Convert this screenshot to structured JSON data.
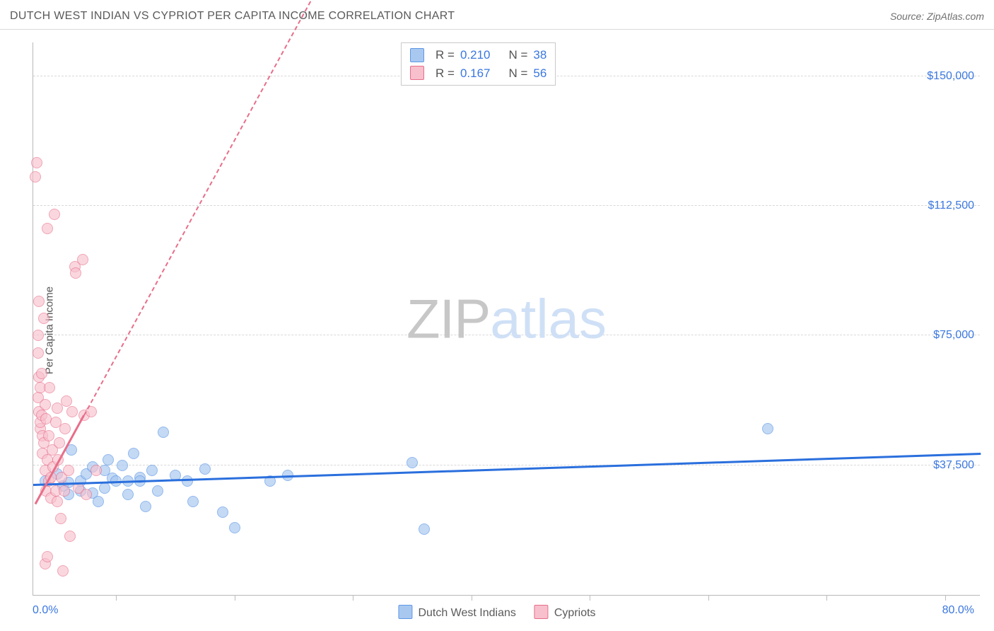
{
  "header": {
    "title": "DUTCH WEST INDIAN VS CYPRIOT PER CAPITA INCOME CORRELATION CHART",
    "source_prefix": "Source: ",
    "source_name": "ZipAtlas.com"
  },
  "watermark": {
    "part1": "ZIP",
    "part2": "atlas"
  },
  "axes": {
    "ylabel": "Per Capita Income",
    "xmin": 0,
    "xmax": 80,
    "xmin_label": "0.0%",
    "xmax_label": "80.0%",
    "ymin": 0,
    "ymax": 160000,
    "yticks": [
      {
        "v": 37500,
        "label": "$37,500"
      },
      {
        "v": 75000,
        "label": "$75,000"
      },
      {
        "v": 112500,
        "label": "$112,500"
      },
      {
        "v": 150000,
        "label": "$150,000"
      }
    ],
    "xticks_minor": [
      7,
      17,
      27,
      37,
      47,
      57,
      67,
      77
    ],
    "grid_color": "#d8d8d8",
    "axis_color": "#b8b8b8",
    "tick_label_color": "#3a77e0"
  },
  "stats_legend": {
    "rows": [
      {
        "swatch_key": "A",
        "r_label": "R =",
        "r_value": "0.210",
        "n_label": "N =",
        "n_value": "38"
      },
      {
        "swatch_key": "B",
        "r_label": "R =",
        "r_value": "0.167",
        "n_label": "N =",
        "n_value": "56"
      }
    ]
  },
  "series": {
    "A": {
      "name": "Dutch West Indians",
      "marker_fill": "#a9c8f0",
      "marker_stroke": "#5e98e6",
      "marker_opacity": 0.68,
      "marker_radius_px": 8,
      "trend_color": "#2a6fdd",
      "trend": {
        "x1": 0,
        "y1": 31500,
        "x2": 80,
        "y2": 40500,
        "solid_until_x": 80,
        "dashed_after": false
      },
      "points": [
        [
          1,
          33000
        ],
        [
          2,
          35000
        ],
        [
          2.5,
          31500
        ],
        [
          3,
          32500
        ],
        [
          3,
          29000
        ],
        [
          3.2,
          42000
        ],
        [
          4,
          30000
        ],
        [
          4,
          33000
        ],
        [
          4.5,
          35000
        ],
        [
          5,
          29500
        ],
        [
          5,
          37000
        ],
        [
          5.5,
          27000
        ],
        [
          6,
          31000
        ],
        [
          6,
          36000
        ],
        [
          6.3,
          39000
        ],
        [
          6.7,
          33800
        ],
        [
          7,
          33000
        ],
        [
          7.5,
          37500
        ],
        [
          8,
          29000
        ],
        [
          8,
          33000
        ],
        [
          8.5,
          41000
        ],
        [
          9,
          34000
        ],
        [
          9,
          33000
        ],
        [
          9.5,
          25500
        ],
        [
          10,
          36000
        ],
        [
          10.5,
          30000
        ],
        [
          11,
          47000
        ],
        [
          12,
          34500
        ],
        [
          13,
          33000
        ],
        [
          13.5,
          27000
        ],
        [
          14.5,
          36500
        ],
        [
          16,
          24000
        ],
        [
          17,
          19500
        ],
        [
          20,
          33000
        ],
        [
          21.5,
          34500
        ],
        [
          32,
          38200
        ],
        [
          33,
          19000
        ],
        [
          62,
          48000
        ]
      ]
    },
    "B": {
      "name": "Cypriots",
      "marker_fill": "#f7c0cc",
      "marker_stroke": "#e86e89",
      "marker_opacity": 0.62,
      "marker_radius_px": 8,
      "trend_color": "#e86e89",
      "trend": {
        "x1": 0.2,
        "y1": 26000,
        "x2": 24,
        "y2": 175000,
        "solid_until_x": 4.3,
        "dashed_after": true
      },
      "points": [
        [
          0.2,
          121000
        ],
        [
          0.3,
          125000
        ],
        [
          0.4,
          70000
        ],
        [
          0.4,
          75000
        ],
        [
          0.4,
          57000
        ],
        [
          0.5,
          85000
        ],
        [
          0.5,
          63000
        ],
        [
          0.5,
          53000
        ],
        [
          0.6,
          48000
        ],
        [
          0.6,
          50000
        ],
        [
          0.6,
          60000
        ],
        [
          0.7,
          52000
        ],
        [
          0.7,
          64000
        ],
        [
          0.8,
          41000
        ],
        [
          0.8,
          46000
        ],
        [
          0.9,
          80000
        ],
        [
          0.9,
          44000
        ],
        [
          1.0,
          55000
        ],
        [
          1.0,
          36000
        ],
        [
          1.1,
          51000
        ],
        [
          1.1,
          30000
        ],
        [
          1.2,
          39000
        ],
        [
          1.2,
          106000
        ],
        [
          1.3,
          46000
        ],
        [
          1.3,
          33000
        ],
        [
          1.4,
          60000
        ],
        [
          1.5,
          34000
        ],
        [
          1.5,
          28000
        ],
        [
          1.6,
          42000
        ],
        [
          1.7,
          37000
        ],
        [
          1.8,
          110000
        ],
        [
          1.9,
          30000
        ],
        [
          1.9,
          50000
        ],
        [
          2.0,
          27000
        ],
        [
          2.1,
          39000
        ],
        [
          2.2,
          44000
        ],
        [
          2.3,
          22000
        ],
        [
          2.4,
          34000
        ],
        [
          2.5,
          7000
        ],
        [
          2.6,
          30000
        ],
        [
          2.7,
          48000
        ],
        [
          2.8,
          56000
        ],
        [
          3.0,
          36000
        ],
        [
          3.1,
          17000
        ],
        [
          3.3,
          53000
        ],
        [
          3.5,
          95000
        ],
        [
          3.6,
          93000
        ],
        [
          3.8,
          31000
        ],
        [
          4.2,
          97000
        ],
        [
          4.3,
          52000
        ],
        [
          4.5,
          29000
        ],
        [
          4.9,
          53000
        ],
        [
          5.3,
          36000
        ],
        [
          1.0,
          9000
        ],
        [
          1.2,
          11000
        ],
        [
          2.0,
          54000
        ]
      ]
    }
  },
  "bottom_legend": {
    "items": [
      {
        "swatch_key": "A"
      },
      {
        "swatch_key": "B"
      }
    ]
  }
}
